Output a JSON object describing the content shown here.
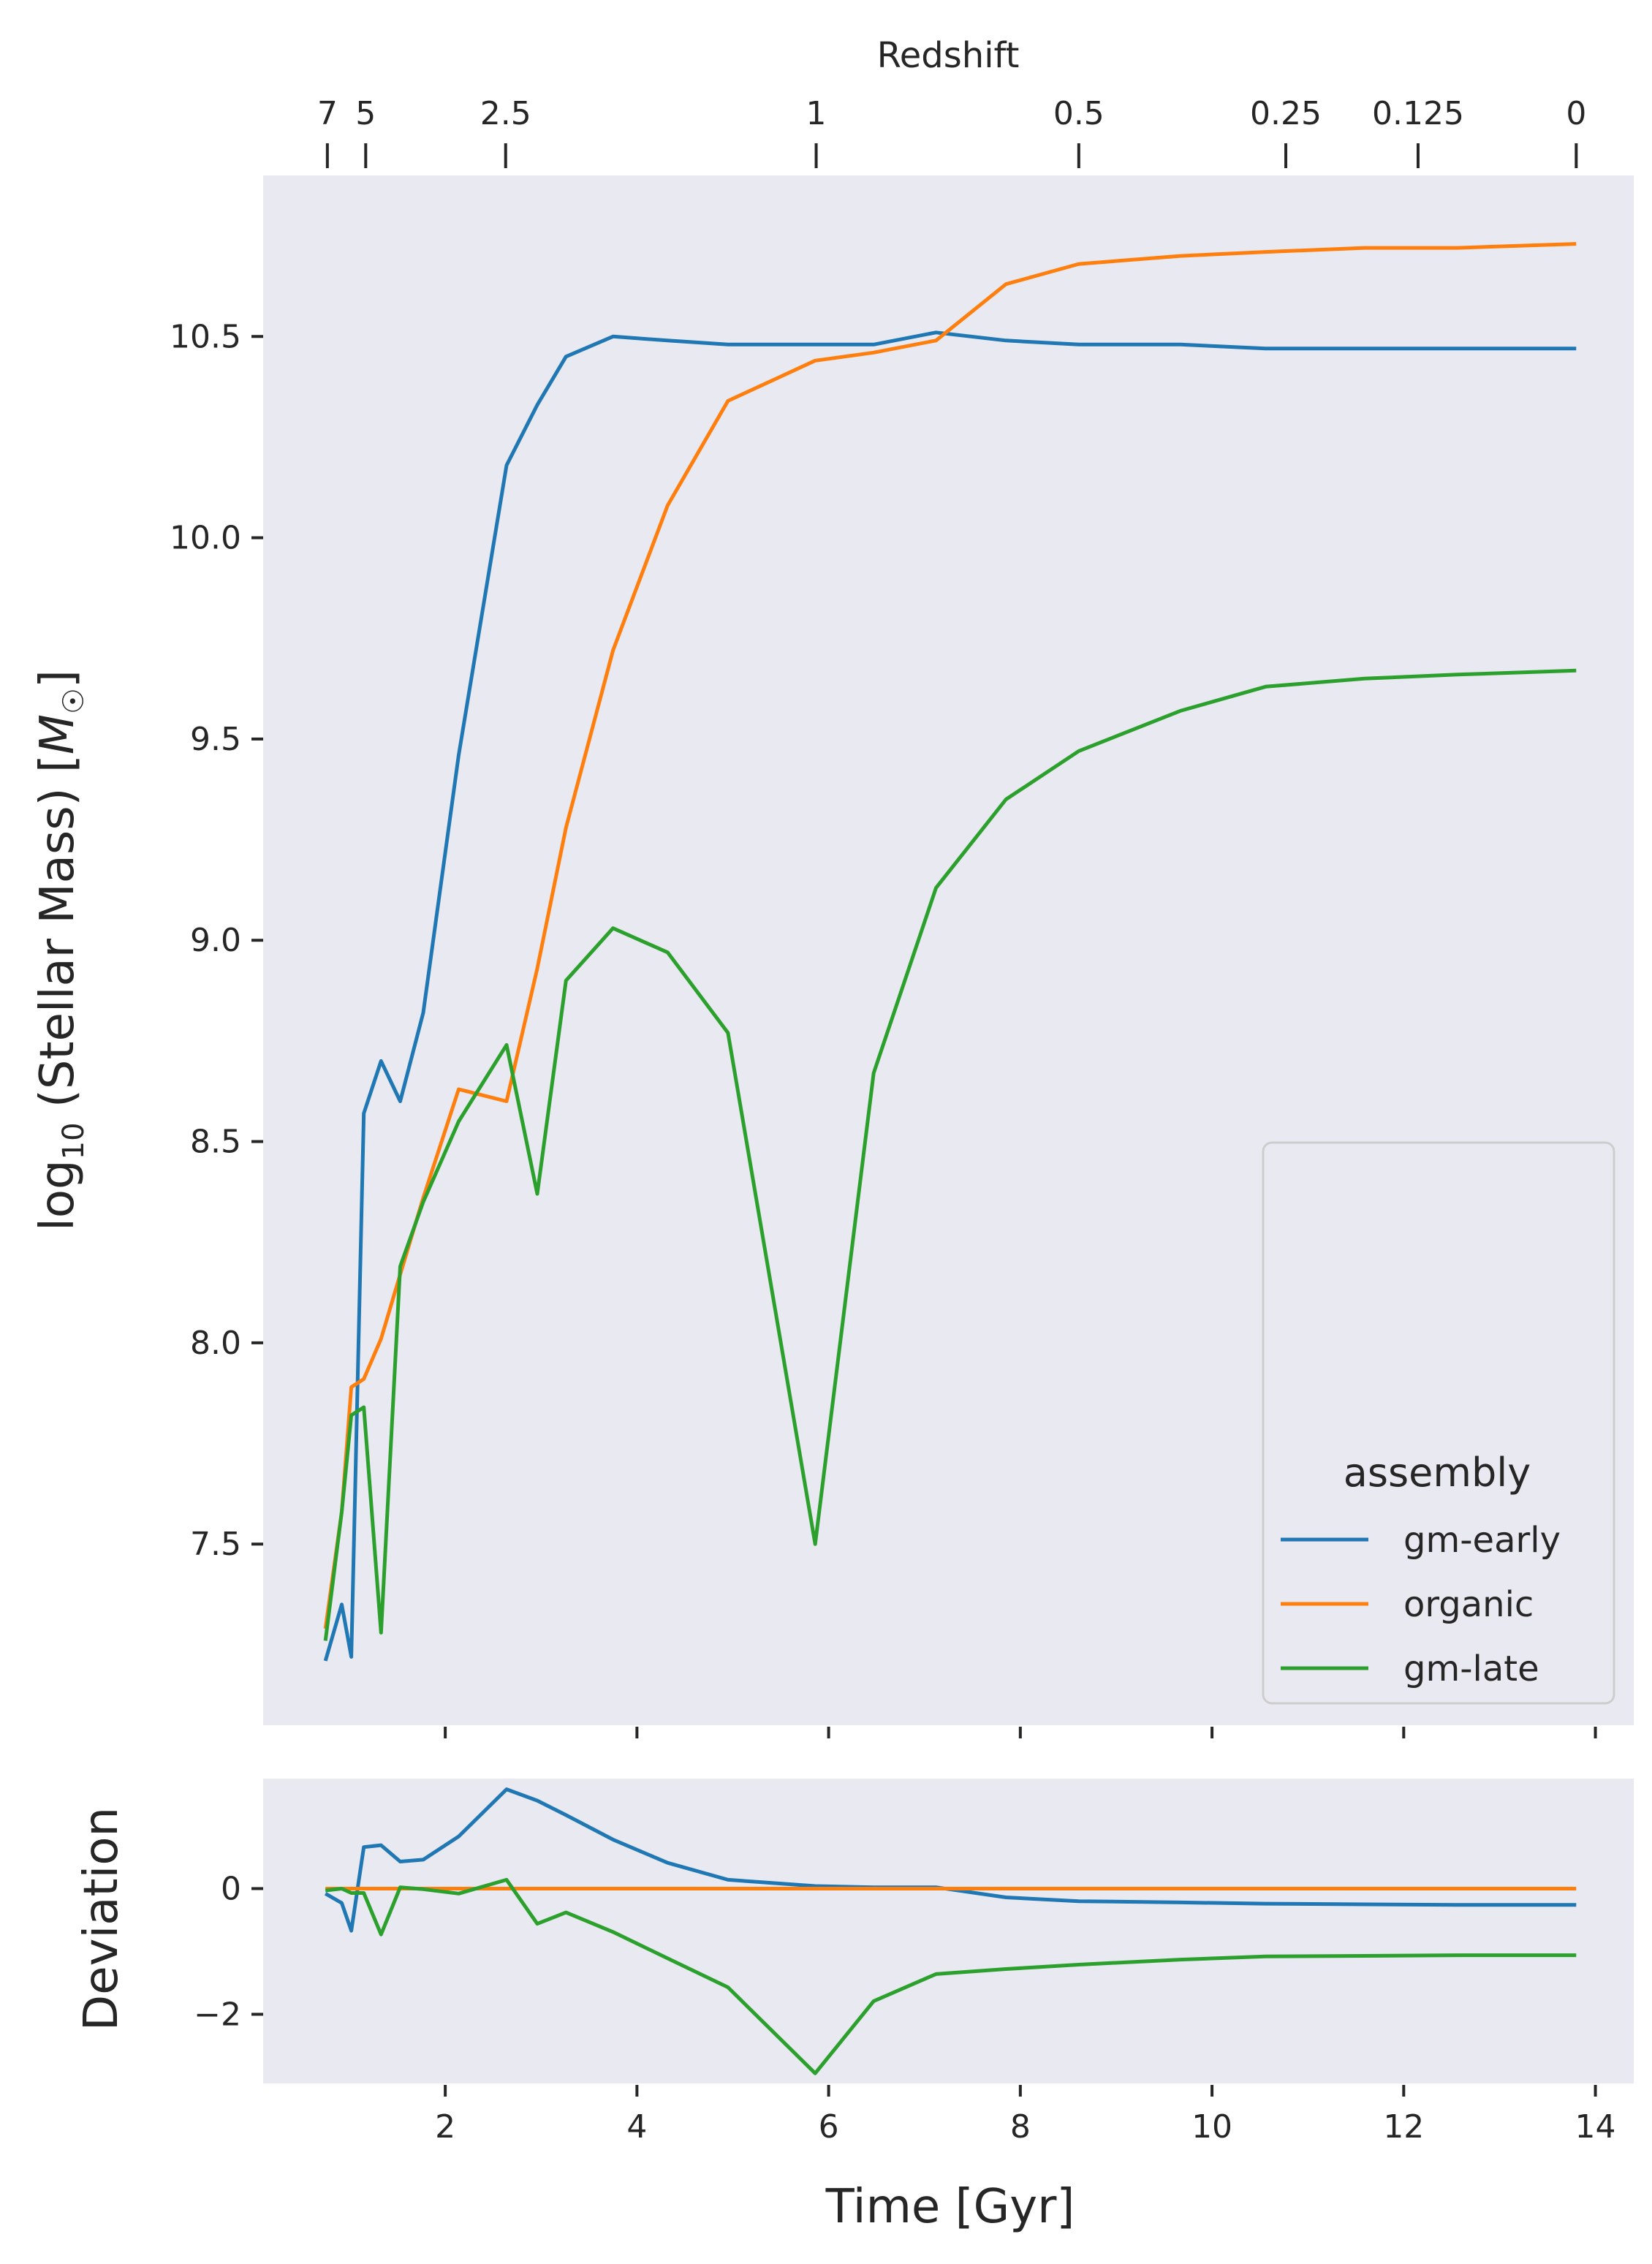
{
  "chart_data": [
    {
      "type": "line",
      "panel": "main",
      "title": "",
      "ylabel": "log10 (Stellar Mass) [M☉]",
      "ylabel_parts": {
        "prefix": "log",
        "subscript": "10",
        "middle": " (Stellar Mass) [",
        "symbol": "M",
        "symbol_sub": "☉",
        "suffix": "]"
      },
      "ylim": [
        7.05,
        10.9
      ],
      "xlim": [
        0.1,
        14.4
      ],
      "yticks": [
        7.5,
        8.0,
        8.5,
        9.0,
        9.5,
        10.0,
        10.5
      ],
      "ytick_labels": [
        "7.5",
        "8.0",
        "8.5",
        "9.0",
        "9.5",
        "10.0",
        "10.5"
      ],
      "top_axis": {
        "label": "Redshift",
        "ticks": [
          {
            "label": "7",
            "time": 0.77
          },
          {
            "label": "5",
            "time": 1.17
          },
          {
            "label": "2.5",
            "time": 2.63
          },
          {
            "label": "1",
            "time": 5.87
          },
          {
            "label": "0.5",
            "time": 8.61
          },
          {
            "label": "0.25",
            "time": 10.77
          },
          {
            "label": "0.125",
            "time": 12.15
          },
          {
            "label": "0",
            "time": 13.8
          }
        ]
      },
      "grid": false,
      "legend": {
        "title": "assembly",
        "placement": "lower-right",
        "entries": [
          "gm-early",
          "organic",
          "gm-late"
        ]
      },
      "x": [
        0.75,
        0.92,
        1.02,
        1.15,
        1.33,
        1.53,
        1.77,
        2.14,
        2.64,
        2.96,
        3.26,
        3.75,
        4.32,
        4.95,
        5.86,
        6.47,
        7.12,
        7.85,
        8.61,
        9.67,
        10.56,
        11.59,
        12.56,
        13.8
      ],
      "series": [
        {
          "name": "gm-early",
          "color": "#1f77b4",
          "values": [
            7.21,
            7.35,
            7.22,
            8.57,
            8.7,
            8.6,
            8.82,
            9.46,
            10.18,
            10.33,
            10.45,
            10.5,
            10.49,
            10.48,
            10.48,
            10.48,
            10.51,
            10.49,
            10.48,
            10.48,
            10.47,
            10.47,
            10.47,
            10.47
          ]
        },
        {
          "name": "organic",
          "color": "#ff7f0e",
          "values": [
            7.29,
            7.58,
            7.89,
            7.91,
            8.01,
            8.17,
            8.36,
            8.63,
            8.6,
            8.93,
            9.28,
            9.72,
            10.08,
            10.34,
            10.44,
            10.46,
            10.49,
            10.63,
            10.68,
            10.7,
            10.71,
            10.72,
            10.72,
            10.73
          ]
        },
        {
          "name": "gm-late",
          "color": "#2ca02c",
          "values": [
            7.26,
            7.58,
            7.82,
            7.84,
            7.28,
            8.19,
            8.35,
            8.55,
            8.74,
            8.37,
            8.9,
            9.03,
            8.97,
            8.77,
            7.5,
            8.67,
            9.13,
            9.35,
            9.47,
            9.57,
            9.63,
            9.65,
            9.66,
            9.67
          ]
        }
      ]
    },
    {
      "type": "line",
      "panel": "deviation",
      "title": "",
      "xlabel": "Time [Gyr]",
      "ylabel": "Deviation",
      "ylim": [
        -3.1,
        1.75
      ],
      "xlim": [
        0.1,
        14.4
      ],
      "yticks": [
        -2,
        0
      ],
      "ytick_labels": [
        "−2",
        "0"
      ],
      "xticks": [
        2,
        4,
        6,
        8,
        10,
        12,
        14
      ],
      "xtick_labels": [
        "2",
        "4",
        "6",
        "8",
        "10",
        "12",
        "14"
      ],
      "grid": false,
      "x": [
        0.75,
        0.92,
        1.02,
        1.15,
        1.33,
        1.53,
        1.77,
        2.14,
        2.64,
        2.96,
        3.26,
        3.75,
        4.32,
        4.95,
        5.86,
        6.47,
        7.12,
        7.85,
        8.61,
        9.67,
        10.56,
        11.59,
        12.56,
        13.8
      ],
      "series": [
        {
          "name": "gm-early",
          "color": "#1f77b4",
          "values": [
            -0.08,
            -0.23,
            -0.67,
            0.66,
            0.69,
            0.43,
            0.46,
            0.83,
            1.58,
            1.4,
            1.17,
            0.78,
            0.41,
            0.14,
            0.04,
            0.02,
            0.02,
            -0.14,
            -0.2,
            -0.22,
            -0.24,
            -0.25,
            -0.26,
            -0.26
          ]
        },
        {
          "name": "organic",
          "color": "#ff7f0e",
          "values": [
            0,
            0,
            0,
            0,
            0,
            0,
            0,
            0,
            0,
            0,
            0,
            0,
            0,
            0,
            0,
            0,
            0,
            0,
            0,
            0,
            0,
            0,
            0,
            0
          ]
        },
        {
          "name": "gm-late",
          "color": "#2ca02c",
          "values": [
            -0.03,
            0.0,
            -0.07,
            -0.07,
            -0.73,
            0.02,
            -0.01,
            -0.08,
            0.14,
            -0.56,
            -0.38,
            -0.69,
            -1.11,
            -1.57,
            -2.94,
            -1.79,
            -1.36,
            -1.28,
            -1.21,
            -1.13,
            -1.08,
            -1.07,
            -1.06,
            -1.06
          ]
        }
      ]
    }
  ]
}
